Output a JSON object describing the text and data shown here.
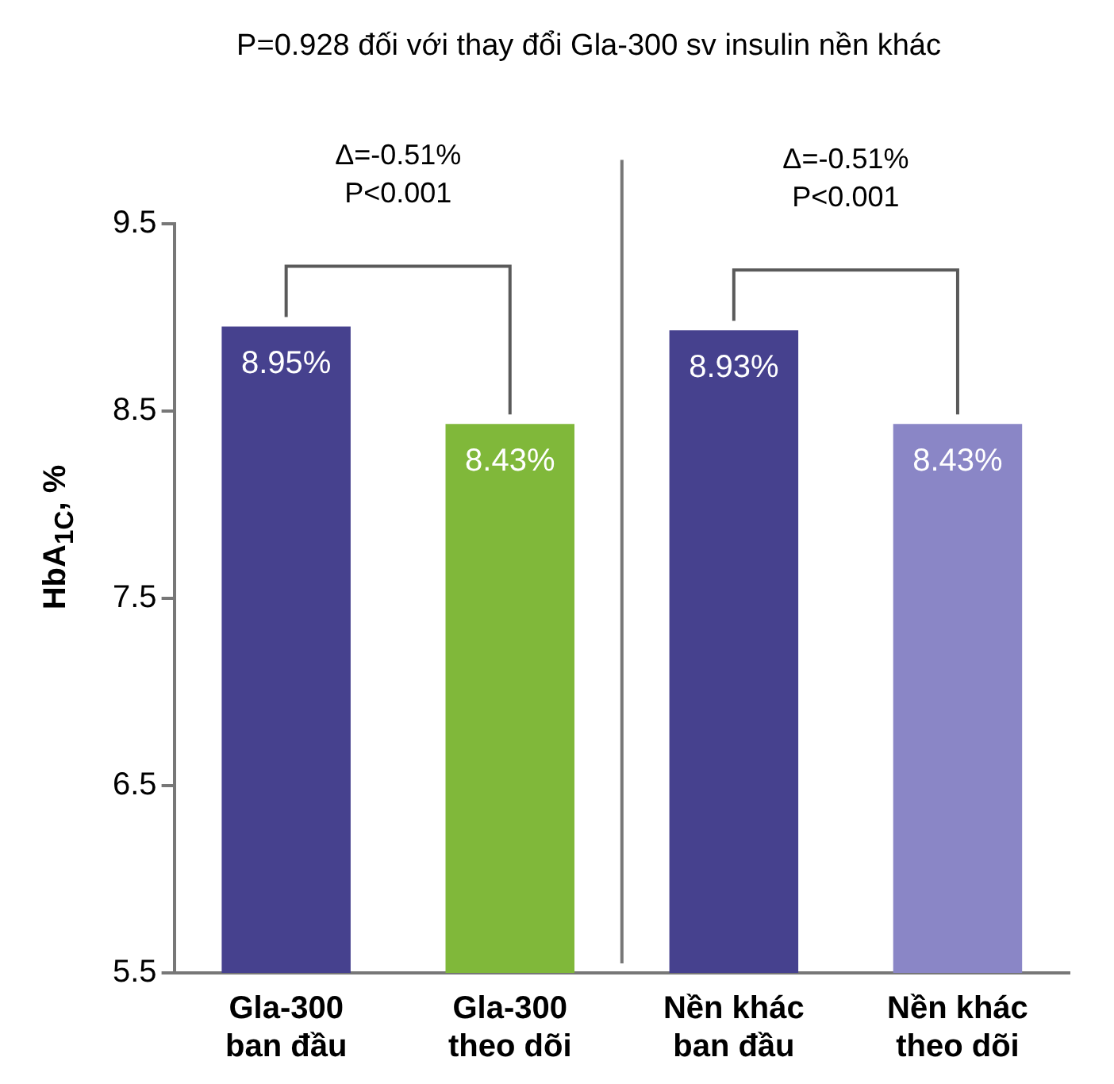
{
  "chart_data": {
    "type": "bar",
    "title": "P=0.928 đối với thay đổi Gla-300 sv insulin nền khác",
    "ylabel": "HbA$_{1C}$, %",
    "categories": [
      "Gla-300\nban đầu",
      "Gla-300\ntheo dõi",
      "Nền khác\nban đầu",
      "Nền khác\ntheo dõi"
    ],
    "values": [
      8.95,
      8.43,
      8.93,
      8.43
    ],
    "colors": [
      "#46418e",
      "#80b83a",
      "#46418e",
      "#8a86c6"
    ],
    "value_labels": [
      "8.95%",
      "8.43%",
      "8.93%",
      "8.43%"
    ],
    "annotations": [
      "Δ=-0.51%\nP<0.001",
      "Δ=-0.51%\nP<0.001"
    ],
    "ylim": [
      5.5,
      9.5
    ],
    "yticks": [
      5.5,
      6.5,
      7.5,
      8.5,
      9.5
    ],
    "grid": false,
    "legend": false
  }
}
